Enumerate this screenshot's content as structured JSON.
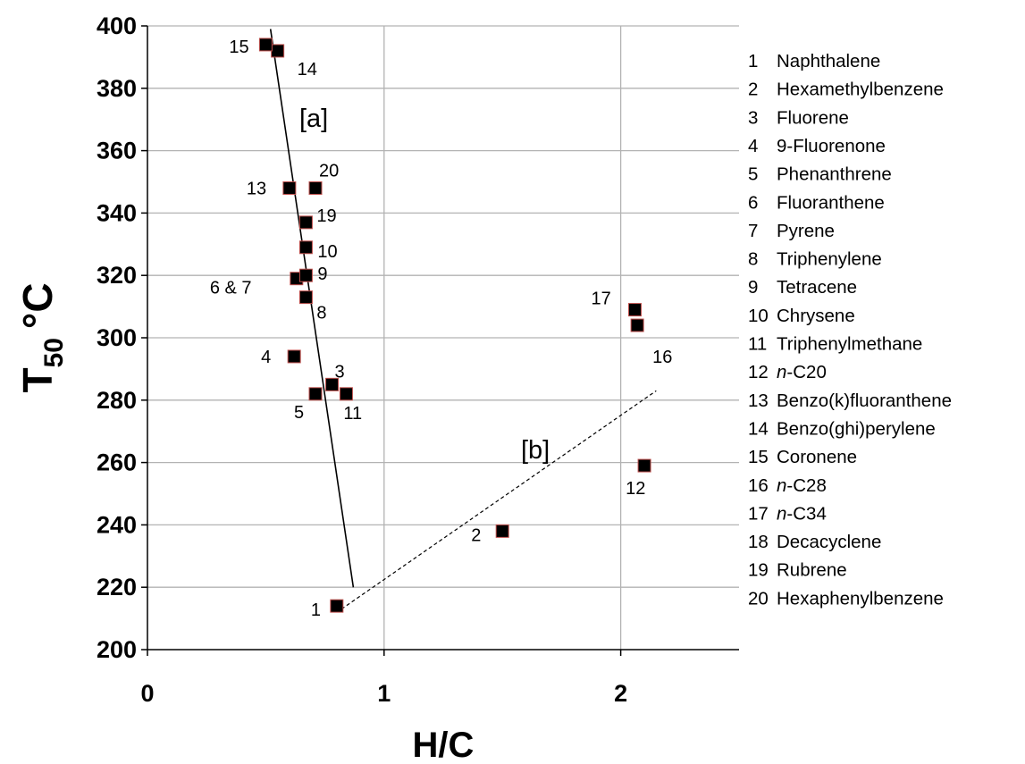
{
  "chart_data": {
    "type": "scatter",
    "xlabel": "H/C",
    "ylabel_main": "T",
    "ylabel_sub": "50",
    "ylabel_unit": "°C",
    "xlim": [
      0,
      2.5
    ],
    "ylim": [
      200,
      400
    ],
    "x_ticks": [
      0,
      1,
      2
    ],
    "x_tick_labels": [
      "0",
      "1",
      "2"
    ],
    "y_ticks": [
      200,
      220,
      240,
      260,
      280,
      300,
      320,
      340,
      360,
      380,
      400
    ],
    "y_tick_labels": [
      "200",
      "220",
      "240",
      "260",
      "280",
      "300",
      "320",
      "340",
      "360",
      "380",
      "400"
    ],
    "grid": "horizontal and vertical major gridlines",
    "marker": {
      "shape": "square",
      "fill": "#000000",
      "edge": "#c0504d"
    },
    "points": [
      {
        "label": "1",
        "x": 0.8,
        "y": 214
      },
      {
        "label": "2",
        "x": 1.5,
        "y": 238
      },
      {
        "label": "3",
        "x": 0.78,
        "y": 285
      },
      {
        "label": "4",
        "x": 0.62,
        "y": 294
      },
      {
        "label": "5",
        "x": 0.71,
        "y": 282
      },
      {
        "label": "11",
        "x": 0.84,
        "y": 282
      },
      {
        "label": "8",
        "x": 0.67,
        "y": 313
      },
      {
        "label": "6 & 7",
        "x": 0.63,
        "y": 319
      },
      {
        "label": "9",
        "x": 0.67,
        "y": 320
      },
      {
        "label": "10",
        "x": 0.67,
        "y": 329
      },
      {
        "label": "19",
        "x": 0.67,
        "y": 337
      },
      {
        "label": "13",
        "x": 0.6,
        "y": 348
      },
      {
        "label": "20",
        "x": 0.71,
        "y": 348
      },
      {
        "label": "14",
        "x": 0.55,
        "y": 392
      },
      {
        "label": "15",
        "x": 0.5,
        "y": 394
      },
      {
        "label": "12",
        "x": 2.1,
        "y": 259
      },
      {
        "label": "16",
        "x": 2.07,
        "y": 304
      },
      {
        "label": "17",
        "x": 2.06,
        "y": 309
      }
    ],
    "lines": [
      {
        "name": "[a]",
        "style": "solid",
        "from": [
          0.52,
          399
        ],
        "to": [
          0.87,
          220
        ]
      },
      {
        "name": "[b]",
        "style": "dashed",
        "from": [
          0.82,
          213
        ],
        "to": [
          2.15,
          283
        ]
      }
    ],
    "legend_placement": "right",
    "legend": [
      {
        "num": "1",
        "name": "Naphthalene"
      },
      {
        "num": "2",
        "name": "Hexamethylbenzene"
      },
      {
        "num": "3",
        "name": "Fluorene"
      },
      {
        "num": "4",
        "name": "9-Fluorenone"
      },
      {
        "num": "5",
        "name": "Phenanthrene"
      },
      {
        "num": "6",
        "name": "Fluoranthene"
      },
      {
        "num": "7",
        "name": "Pyrene"
      },
      {
        "num": "8",
        "name": "Triphenylene"
      },
      {
        "num": "9",
        "name": "Tetracene"
      },
      {
        "num": "10",
        "name": "Chrysene"
      },
      {
        "num": "11",
        "name": "Triphenylmethane"
      },
      {
        "num": "12",
        "prefix": "n",
        "name": "-C20"
      },
      {
        "num": "13",
        "name": "Benzo(k)fluoranthene"
      },
      {
        "num": "14",
        "name": "Benzo(ghi)perylene"
      },
      {
        "num": "15",
        "name": "Coronene"
      },
      {
        "num": "16",
        "prefix": "n",
        "name": "-C28"
      },
      {
        "num": "17",
        "prefix": "n",
        "name": "-C34"
      },
      {
        "num": "18",
        "name": "Decacyclene"
      },
      {
        "num": "19",
        "name": "Rubrene"
      },
      {
        "num": "20",
        "name": "Hexaphenylbenzene"
      }
    ]
  }
}
